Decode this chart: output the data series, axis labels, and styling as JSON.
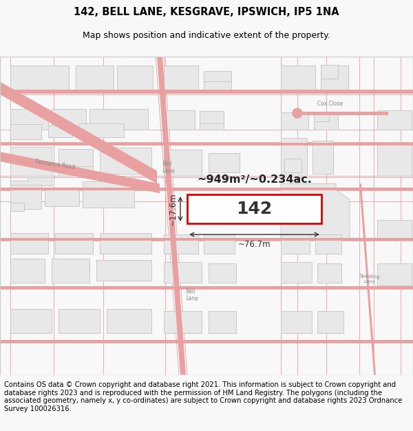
{
  "title_line1": "142, BELL LANE, KESGRAVE, IPSWICH, IP5 1NA",
  "title_line2": "Map shows position and indicative extent of the property.",
  "footer_text": "Contains OS data © Crown copyright and database right 2021. This information is subject to Crown copyright and database rights 2023 and is reproduced with the permission of HM Land Registry. The polygons (including the associated geometry, namely x, y co-ordinates) are subject to Crown copyright and database rights 2023 Ordnance Survey 100026316.",
  "bg_color": "#f8f8f8",
  "map_bg": "#ffffff",
  "road_color": "#e8a0a0",
  "building_fill": "#e8e8e8",
  "building_edge": "#c8c8c8",
  "highlight_color": "#dd0000",
  "title_fontsize": 10.5,
  "subtitle_fontsize": 9,
  "footer_fontsize": 7.2,
  "property_label": "142",
  "area_label": "~949m²/~0.234ac.",
  "width_label": "~76.7m",
  "height_label": "~17.6m"
}
